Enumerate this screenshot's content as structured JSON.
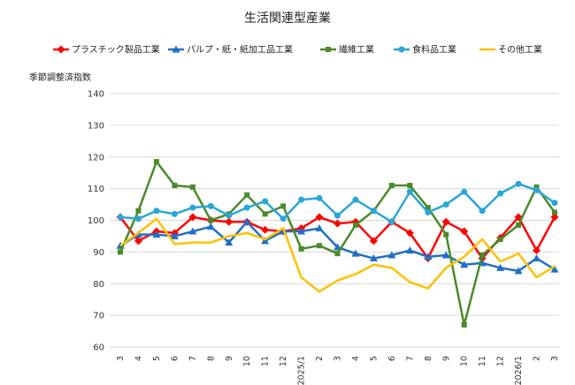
{
  "chart_data": {
    "type": "line",
    "title": "生活関連型産業",
    "ylabel": "季節調整済指数",
    "xlabel": "",
    "ylim": [
      60,
      140
    ],
    "yticks": [
      60,
      70,
      80,
      90,
      100,
      110,
      120,
      130,
      140
    ],
    "grid": "horizontal",
    "legend_position": "top",
    "categories": [
      "3",
      "4",
      "5",
      "6",
      "7",
      "8",
      "9",
      "10",
      "11",
      "12",
      "2025/1",
      "2",
      "3",
      "4",
      "5",
      "6",
      "7",
      "8",
      "9",
      "10",
      "11",
      "12",
      "2026/1",
      "2",
      "3"
    ],
    "series": [
      {
        "name": "プラスチック製品工業",
        "color": "#ff0000",
        "marker": "diamond",
        "values": [
          101.0,
          93.5,
          96.5,
          96.0,
          101.0,
          100.0,
          99.5,
          99.5,
          97.0,
          96.5,
          97.5,
          101.0,
          99.0,
          99.5,
          93.5,
          99.5,
          96.0,
          88.0,
          99.5,
          96.5,
          88.0,
          94.5,
          101.0,
          90.5,
          101.0
        ]
      },
      {
        "name": "パルプ・紙・紙加工品工業",
        "color": "#1f6fc5",
        "marker": "triangle",
        "values": [
          92.0,
          95.5,
          95.5,
          95.0,
          96.5,
          98.0,
          93.0,
          99.5,
          93.5,
          96.5,
          96.5,
          97.5,
          91.5,
          89.5,
          88.0,
          89.0,
          90.5,
          88.5,
          89.0,
          86.0,
          86.5,
          85.0,
          84.0,
          88.0,
          84.5
        ]
      },
      {
        "name": "繊維工業",
        "color": "#4a8a2a",
        "marker": "square",
        "values": [
          90.0,
          103.0,
          118.5,
          111.0,
          110.5,
          100.0,
          102.0,
          108.0,
          102.0,
          104.5,
          91.0,
          92.0,
          89.5,
          98.5,
          103.0,
          111.0,
          111.0,
          104.0,
          95.5,
          67.0,
          89.0,
          94.0,
          98.5,
          110.5,
          102.5
        ]
      },
      {
        "name": "食料品工業",
        "color": "#2aa6d6",
        "marker": "circle",
        "values": [
          101.0,
          100.5,
          103.0,
          102.0,
          104.0,
          104.5,
          101.5,
          104.0,
          106.0,
          100.5,
          106.5,
          107.0,
          101.5,
          106.5,
          103.0,
          99.5,
          109.0,
          102.5,
          105.0,
          109.0,
          103.0,
          108.5,
          111.5,
          109.5,
          105.5
        ]
      },
      {
        "name": "その他工業",
        "color": "#ffc000",
        "marker": "none",
        "values": [
          92.0,
          96.0,
          100.5,
          92.5,
          93.0,
          93.0,
          95.0,
          96.0,
          94.0,
          97.5,
          82.0,
          77.5,
          81.0,
          83.0,
          86.0,
          85.0,
          80.5,
          78.5,
          85.0,
          88.5,
          94.0,
          87.0,
          89.5,
          82.0,
          85.5
        ]
      }
    ]
  }
}
